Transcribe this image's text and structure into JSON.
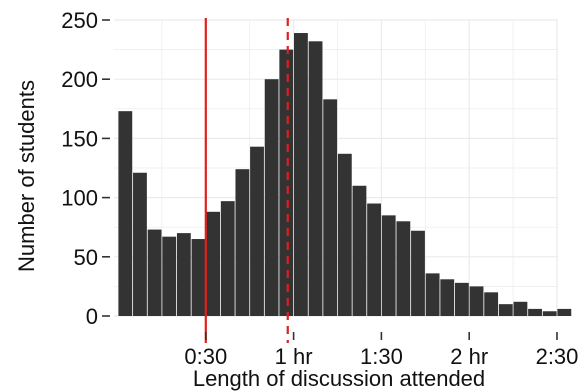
{
  "chart_data": {
    "type": "bar",
    "xlabel": "Length of discussion attended",
    "ylabel": "Number of students",
    "xlim": [
      0,
      155
    ],
    "ylim": [
      0,
      250
    ],
    "bin_width_minutes": 5,
    "bin_starts_minutes": [
      0,
      5,
      10,
      15,
      20,
      25,
      30,
      35,
      40,
      45,
      50,
      55,
      60,
      65,
      70,
      75,
      80,
      85,
      90,
      95,
      100,
      105,
      110,
      115,
      120,
      125,
      130,
      135,
      140,
      145,
      150
    ],
    "values": [
      173,
      121,
      73,
      67,
      70,
      65,
      88,
      97,
      124,
      143,
      200,
      225,
      239,
      232,
      183,
      137,
      110,
      95,
      85,
      80,
      72,
      36,
      31,
      28,
      25,
      20,
      10,
      12,
      6,
      4,
      6
    ],
    "x_ticks": [
      {
        "value": 30,
        "label": "0:30"
      },
      {
        "value": 60,
        "label": "1 hr"
      },
      {
        "value": 90,
        "label": "1:30"
      },
      {
        "value": 120,
        "label": "2 hr"
      },
      {
        "value": 150,
        "label": "2:30"
      }
    ],
    "y_ticks": [
      {
        "value": 0,
        "label": "0"
      },
      {
        "value": 50,
        "label": "50"
      },
      {
        "value": 100,
        "label": "100"
      },
      {
        "value": 150,
        "label": "150"
      },
      {
        "value": 200,
        "label": "200"
      },
      {
        "value": 250,
        "label": "250"
      }
    ],
    "reference_lines": [
      {
        "x": 30,
        "style": "solid",
        "color": "#e0201b"
      },
      {
        "x": 58,
        "style": "dashed",
        "color": "#e0201b"
      }
    ],
    "bar_color": "#333333",
    "grid": true,
    "grid_color": "#ebebeb"
  }
}
